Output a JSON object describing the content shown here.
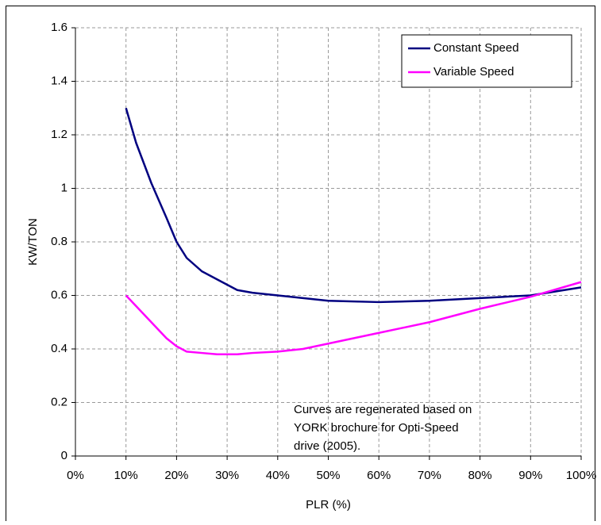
{
  "chart_data": {
    "type": "line",
    "x_label": "PLR (%)",
    "y_label": "KW/TON",
    "x": [
      10,
      12,
      15,
      18,
      20,
      22,
      25,
      28,
      30,
      32,
      35,
      40,
      45,
      50,
      60,
      70,
      80,
      90,
      100
    ],
    "series": [
      {
        "name": "Constant Speed",
        "color": "#000080",
        "values": [
          1.3,
          1.17,
          1.02,
          0.89,
          0.8,
          0.74,
          0.69,
          0.66,
          0.64,
          0.62,
          0.61,
          0.6,
          0.59,
          0.58,
          0.575,
          0.58,
          0.59,
          0.6,
          0.63
        ]
      },
      {
        "name": "Variable Speed",
        "color": "#ff00ff",
        "values": [
          0.6,
          0.56,
          0.5,
          0.44,
          0.41,
          0.39,
          0.385,
          0.38,
          0.38,
          0.38,
          0.385,
          0.39,
          0.4,
          0.42,
          0.46,
          0.5,
          0.55,
          0.595,
          0.65
        ]
      }
    ],
    "xlim": [
      0,
      100
    ],
    "xticks": [
      {
        "value": 0,
        "label": "0%"
      },
      {
        "value": 10,
        "label": "10%"
      },
      {
        "value": 20,
        "label": "20%"
      },
      {
        "value": 30,
        "label": "30%"
      },
      {
        "value": 40,
        "label": "40%"
      },
      {
        "value": 50,
        "label": "50%"
      },
      {
        "value": 60,
        "label": "60%"
      },
      {
        "value": 70,
        "label": "70%"
      },
      {
        "value": 80,
        "label": "80%"
      },
      {
        "value": 90,
        "label": "90%"
      },
      {
        "value": 100,
        "label": "100%"
      }
    ],
    "ylim": [
      0,
      1.6
    ],
    "yticks": [
      0,
      0.2,
      0.4,
      0.6,
      0.8,
      1,
      1.2,
      1.4,
      1.6
    ],
    "grid": true,
    "legend": "top-right",
    "annotation": [
      "Curves are regenerated based on",
      "YORK brochure for Opti-Speed",
      "drive (2005)."
    ]
  }
}
